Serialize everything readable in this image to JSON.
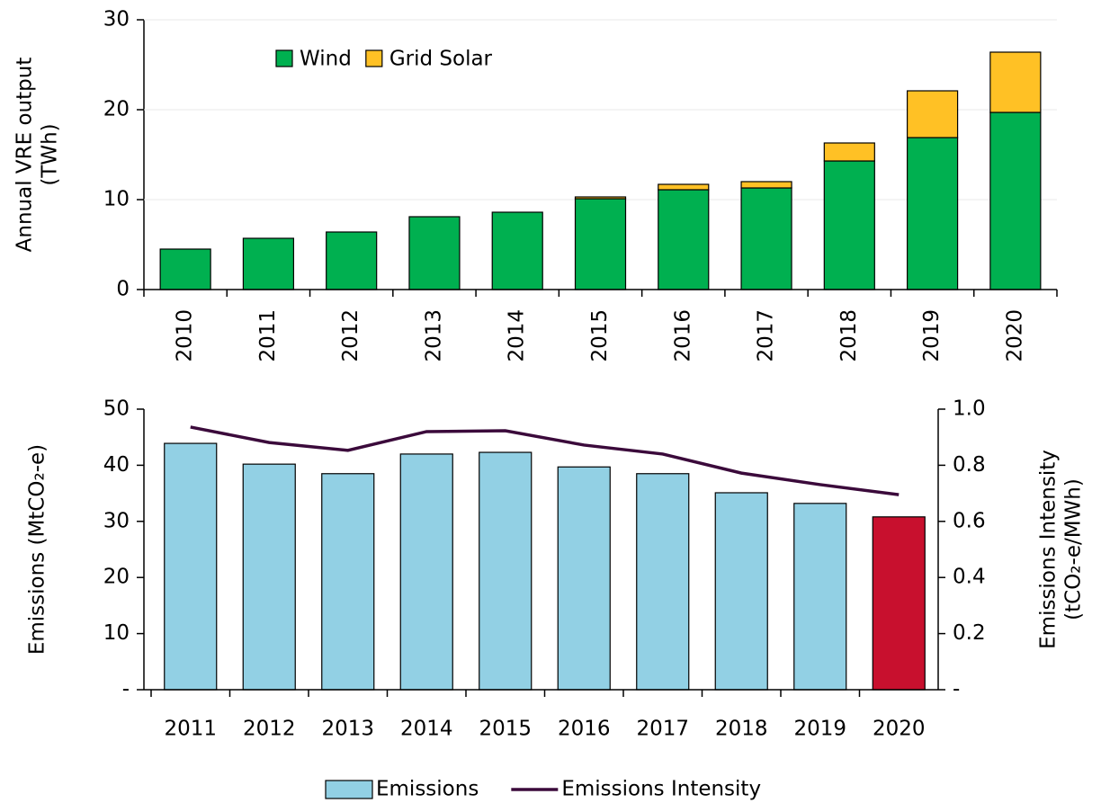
{
  "chart_data": [
    {
      "type": "stacked_bar",
      "y_label": [
        "Annual VRE output",
        "(TWh)"
      ],
      "categories": [
        "2010",
        "2011",
        "2012",
        "2013",
        "2014",
        "2015",
        "2016",
        "2017",
        "2018",
        "2019",
        "2020"
      ],
      "series": [
        {
          "name": "Wind",
          "color": "#00b050",
          "values": [
            4.5,
            5.7,
            6.4,
            8.1,
            8.6,
            10.1,
            11.1,
            11.3,
            14.3,
            16.9,
            19.7
          ]
        },
        {
          "name": "Grid Solar",
          "color": "#ffc125",
          "values": [
            0,
            0,
            0,
            0,
            0,
            0.2,
            0.6,
            0.7,
            2.0,
            5.2,
            6.7
          ]
        }
      ],
      "ylim": [
        0,
        30
      ],
      "yticks": [
        0,
        10,
        20,
        30
      ],
      "grid": true,
      "legend": "top-left"
    },
    {
      "type": "combo",
      "y_label": [
        "Emissions (MtCO₂-e)"
      ],
      "y2_label": [
        "Emissions Intensity",
        "(tCO₂-e/MWh)"
      ],
      "categories": [
        "2011",
        "2012",
        "2013",
        "2014",
        "2015",
        "2016",
        "2017",
        "2018",
        "2019",
        "2020"
      ],
      "series": [
        {
          "name": "Emissions",
          "kind": "bar",
          "colors": [
            "#92d0e4",
            "#92d0e4",
            "#92d0e4",
            "#92d0e4",
            "#92d0e4",
            "#92d0e4",
            "#92d0e4",
            "#92d0e4",
            "#92d0e4",
            "#c8102e"
          ],
          "color": "#92d0e4",
          "values": [
            43.9,
            40.2,
            38.5,
            42.0,
            42.3,
            39.7,
            38.5,
            35.1,
            33.2,
            30.8
          ]
        },
        {
          "name": "Emissions Intensity",
          "kind": "line",
          "axis": "y2",
          "color": "#3b0a3b",
          "values": [
            0.936,
            0.881,
            0.853,
            0.92,
            0.923,
            0.872,
            0.84,
            0.772,
            0.731,
            0.695
          ]
        }
      ],
      "ylim": [
        0,
        50
      ],
      "yticks": [
        {
          "value": 0,
          "label": "-"
        },
        10,
        20,
        30,
        40,
        50
      ],
      "y2lim": [
        0,
        1
      ],
      "y2ticks": [
        {
          "value": 0,
          "label": "-"
        },
        0.2,
        0.4,
        0.6,
        0.8,
        {
          "value": 1,
          "label": "1.0"
        }
      ],
      "legend": "bottom"
    }
  ]
}
